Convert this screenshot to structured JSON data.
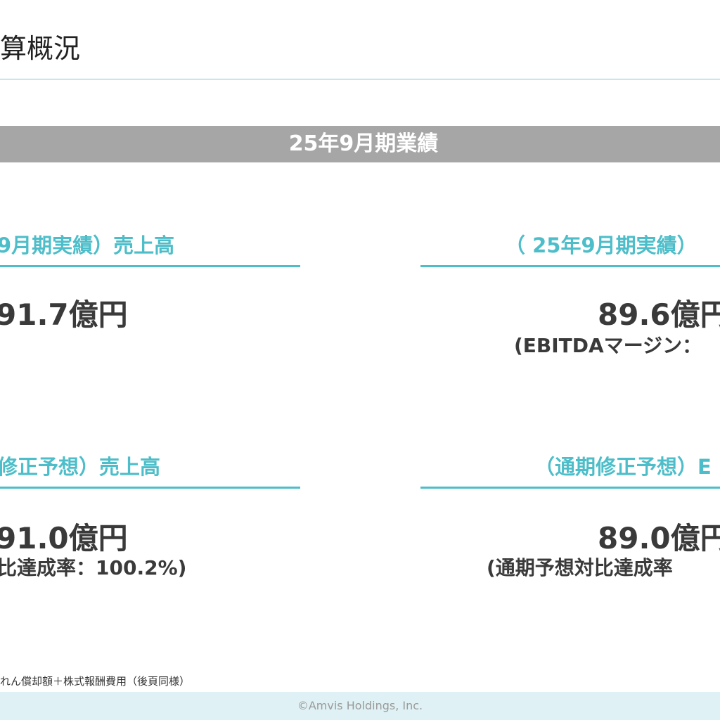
{
  "header": {
    "title": "算概況"
  },
  "banner": {
    "text": "25年9月期業績"
  },
  "cards": {
    "top_left": {
      "label": "9月期実績）売上高",
      "value": "91.7億円",
      "note": ""
    },
    "top_right": {
      "label": "（ 25年9月期実績）",
      "value": "89.6億円",
      "note": "(EBITDAマージン："
    },
    "bottom_left": {
      "label": "修正予想）売上高",
      "value": "91.0億円",
      "note": "比達成率：100.2%)"
    },
    "bottom_right": {
      "label": "（通期修正予想）E",
      "value": "89.0億円",
      "note": "(通期予想対比達成率"
    }
  },
  "footnote": "れん償却額＋株式報酬費用（後頁同様）",
  "footer": {
    "copyright": "©Amvis Holdings, Inc."
  },
  "colors": {
    "accent": "#4dbec9",
    "banner": "#a6a6a6",
    "footer_bg": "#dff1f4"
  }
}
